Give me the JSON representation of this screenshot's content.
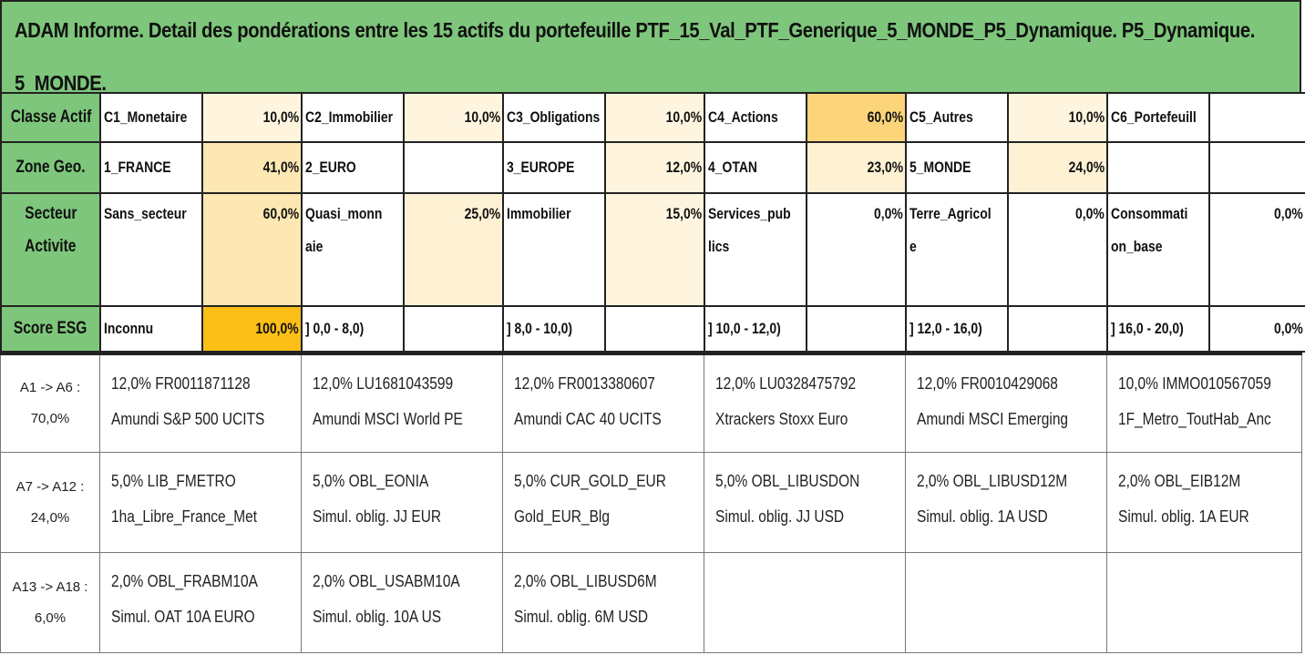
{
  "title": {
    "line1": "ADAM Informe. Detail des pondérations entre les 15 actifs du portefeuille PTF_15_Val_PTF_Generique_5_MONDE_P5_Dynamique. P5_Dynamique.",
    "line2": "5_MONDE."
  },
  "colors": {
    "header_green": "#7ec67b",
    "heat_low": "#fff5df",
    "heat_mid": "#fde7b2",
    "heat_high": "#fbd98a",
    "heat_max": "#fbbf17"
  },
  "classe_actif": {
    "label": "Classe Actif",
    "items": [
      {
        "name": "C1_Monetaire",
        "pct": "10,0%"
      },
      {
        "name": "C2_Immobilier",
        "pct": "10,0%"
      },
      {
        "name": "C3_Obligations",
        "pct": "10,0%"
      },
      {
        "name": "C4_Actions",
        "pct": "60,0%"
      },
      {
        "name": "C5_Autres",
        "pct": "10,0%"
      },
      {
        "name": "C6_Portefeuill",
        "pct": ""
      }
    ]
  },
  "zone_geo": {
    "label": "Zone Geo.",
    "items": [
      {
        "name": "1_FRANCE",
        "pct": "41,0%"
      },
      {
        "name": "2_EURO",
        "pct": ""
      },
      {
        "name": "3_EUROPE",
        "pct": "12,0%"
      },
      {
        "name": "4_OTAN",
        "pct": "23,0%"
      },
      {
        "name": "5_MONDE",
        "pct": "24,0%"
      },
      {
        "name": "",
        "pct": ""
      }
    ]
  },
  "secteur": {
    "label_1": "Secteur",
    "label_2": "Activite",
    "items": [
      {
        "name_1": "Sans_secteur",
        "name_2": "",
        "pct": "60,0%"
      },
      {
        "name_1": "Quasi_monn",
        "name_2": "aie",
        "pct": "25,0%"
      },
      {
        "name_1": "Immobilier",
        "name_2": "",
        "pct": "15,0%"
      },
      {
        "name_1": "Services_pub",
        "name_2": "lics",
        "pct": "0,0%"
      },
      {
        "name_1": "Terre_Agricol",
        "name_2": "e",
        "pct": "0,0%"
      },
      {
        "name_1": "Consommati",
        "name_2": "on_base",
        "pct": "0,0%"
      }
    ]
  },
  "score_esg": {
    "label": "Score ESG",
    "items": [
      {
        "name": "Inconnu",
        "pct": "100,0%"
      },
      {
        "name": "] 0,0 - 8,0)",
        "pct": ""
      },
      {
        "name": "] 8,0 - 10,0)",
        "pct": ""
      },
      {
        "name": "] 10,0 - 12,0)",
        "pct": ""
      },
      {
        "name": "] 12,0 - 16,0)",
        "pct": ""
      },
      {
        "name": "] 16,0 - 20,0)",
        "pct": "0,0%"
      }
    ]
  },
  "asset_groups": [
    {
      "label_1": "A1 -> A6 :",
      "label_2": "70,0%",
      "assets": [
        {
          "line1": "12,0% FR0011871128",
          "line2": "Amundi S&P 500 UCITS"
        },
        {
          "line1": "12,0% LU1681043599",
          "line2": "Amundi MSCI World PE"
        },
        {
          "line1": "12,0% FR0013380607",
          "line2": "Amundi CAC 40 UCITS"
        },
        {
          "line1": "12,0% LU0328475792",
          "line2": "Xtrackers Stoxx Euro"
        },
        {
          "line1": "12,0% FR0010429068",
          "line2": "Amundi MSCI Emerging"
        },
        {
          "line1": "10,0% IMMO010567059",
          "line2": "1F_Metro_ToutHab_Anc"
        }
      ]
    },
    {
      "label_1": "A7 -> A12 :",
      "label_2": "24,0%",
      "assets": [
        {
          "line1": "5,0% LIB_FMETRO",
          "line2": "1ha_Libre_France_Met"
        },
        {
          "line1": "5,0% OBL_EONIA",
          "line2": "Simul. oblig. JJ EUR"
        },
        {
          "line1": "5,0% CUR_GOLD_EUR",
          "line2": "Gold_EUR_Blg"
        },
        {
          "line1": "5,0% OBL_LIBUSDON",
          "line2": "Simul. oblig. JJ USD"
        },
        {
          "line1": "2,0% OBL_LIBUSD12M",
          "line2": "Simul. oblig. 1A USD"
        },
        {
          "line1": "2,0% OBL_EIB12M",
          "line2": "Simul. oblig. 1A EUR"
        }
      ]
    },
    {
      "label_1": "A13 -> A18 :",
      "label_2": "6,0%",
      "assets": [
        {
          "line1": "2,0% OBL_FRABM10A",
          "line2": "Simul. OAT 10A EURO"
        },
        {
          "line1": "2,0% OBL_USABM10A",
          "line2": "Simul. oblig. 10A US"
        },
        {
          "line1": "2,0% OBL_LIBUSD6M",
          "line2": "Simul. oblig. 6M USD"
        },
        {
          "line1": "",
          "line2": ""
        },
        {
          "line1": "",
          "line2": ""
        },
        {
          "line1": "",
          "line2": ""
        }
      ]
    }
  ]
}
